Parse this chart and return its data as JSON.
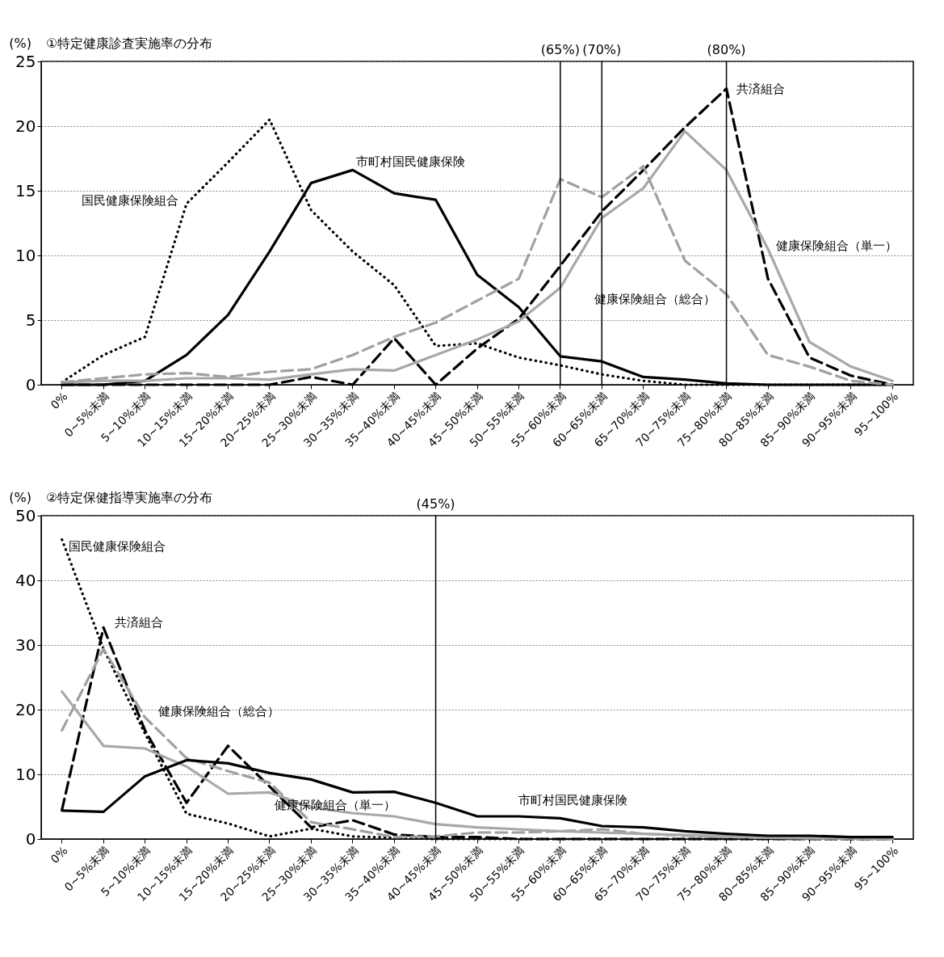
{
  "chart_data": [
    {
      "type": "line",
      "title": "①特定健康診査実施率の分布",
      "ylabel": "(%)",
      "categories": [
        "0%",
        "0~5%未満",
        "5~10%未満",
        "10~15%未満",
        "15~20%未満",
        "20~25%未満",
        "25~30%未満",
        "30~35%未満",
        "35~40%未満",
        "40~45%未満",
        "45~50%未満",
        "50~55%未満",
        "55~60%未満",
        "60~65%未満",
        "65~70%未満",
        "70~75%未満",
        "75~80%未満",
        "80~85%未満",
        "85~90%未満",
        "90~95%未満",
        "95~100%"
      ],
      "series": [
        {
          "name": "国民健康保険組合",
          "color": "#000000",
          "line_style": "dotted",
          "values": [
            0.2,
            2.3,
            3.7,
            14.0,
            17.2,
            20.5,
            13.5,
            10.3,
            7.7,
            3.0,
            3.2,
            2.1,
            1.5,
            0.8,
            0.3,
            0,
            0,
            0,
            0,
            0,
            0
          ]
        },
        {
          "name": "市町村国民健康保険",
          "color": "#000000",
          "line_style": "solid",
          "values": [
            0,
            0,
            0.3,
            2.3,
            5.4,
            10.3,
            15.6,
            16.6,
            14.8,
            14.3,
            8.5,
            6.0,
            2.2,
            1.8,
            0.6,
            0.4,
            0.1,
            0,
            0,
            0,
            0
          ]
        },
        {
          "name": "共済組合",
          "color": "#000000",
          "line_style": "dashed",
          "values": [
            0,
            0,
            0,
            0,
            0,
            0,
            0.6,
            0,
            3.6,
            0,
            2.8,
            5.1,
            9.2,
            13.4,
            16.6,
            19.9,
            22.9,
            8.2,
            2.1,
            0.7,
            0
          ]
        },
        {
          "name": "健康保険組合（単一）",
          "color": "#a8a8a8",
          "line_style": "solid",
          "values": [
            0.2,
            0.3,
            0.3,
            0.5,
            0.5,
            0.4,
            0.8,
            1.2,
            1.1,
            2.3,
            3.5,
            4.9,
            7.5,
            12.9,
            15.2,
            19.6,
            16.6,
            10.5,
            3.3,
            1.4,
            0.3
          ]
        },
        {
          "name": "健康保険組合（総合）",
          "color": "#a0a0a0",
          "line_style": "dashed",
          "values": [
            0.2,
            0.5,
            0.8,
            0.9,
            0.6,
            1.0,
            1.2,
            2.3,
            3.7,
            4.8,
            6.5,
            8.2,
            15.9,
            14.5,
            16.9,
            9.6,
            7.0,
            2.3,
            1.4,
            0.3,
            0
          ]
        }
      ],
      "ylim": [
        0,
        25
      ],
      "yticks": [
        0,
        5,
        10,
        15,
        20,
        25
      ],
      "grid": "y",
      "marker": "none",
      "ref_lines": [
        {
          "axis": "x",
          "value": "55~60%未満",
          "label": "(65%)"
        },
        {
          "axis": "x",
          "value": "60~65%未満",
          "label": "(70%)"
        },
        {
          "axis": "x",
          "value": "75~80%未満",
          "label": "(80%)"
        }
      ]
    },
    {
      "type": "line",
      "title": "②特定保健指導実施率の分布",
      "ylabel": "(%)",
      "categories": [
        "0%",
        "0~5%未満",
        "5~10%未満",
        "10~15%未満",
        "15~20%未満",
        "20~25%未満",
        "25~30%未満",
        "30~35%未満",
        "35~40%未満",
        "40~45%未満",
        "45~50%未満",
        "50~55%未満",
        "55~60%未満",
        "60~65%未満",
        "65~70%未満",
        "70~75%未満",
        "75~80%未満",
        "80~85%未満",
        "85~90%未満",
        "90~95%未満",
        "95~100%"
      ],
      "series": [
        {
          "name": "国民健康保険組合",
          "color": "#000000",
          "line_style": "dotted",
          "values": [
            46.3,
            29.4,
            16.3,
            3.9,
            2.4,
            0.4,
            1.6,
            0.4,
            0.2,
            0,
            0,
            0,
            0,
            0,
            0,
            0,
            0,
            0,
            0,
            0,
            0
          ]
        },
        {
          "name": "共済組合",
          "color": "#000000",
          "line_style": "dashed",
          "values": [
            4.5,
            32.7,
            16.8,
            5.6,
            14.4,
            8.1,
            1.8,
            2.9,
            0.7,
            0.3,
            0.3,
            0,
            0,
            0,
            0,
            0,
            0,
            0,
            0,
            0,
            0
          ]
        },
        {
          "name": "健康保険組合（総合）",
          "color": "#a0a0a0",
          "line_style": "dashed",
          "values": [
            16.8,
            29.4,
            18.8,
            12.5,
            10.5,
            8.7,
            2.6,
            1.5,
            0.3,
            0.4,
            1.0,
            1.0,
            1.2,
            1.5,
            0.8,
            0.5,
            0.3,
            0.2,
            0.2,
            0.1,
            0
          ]
        },
        {
          "name": "健康保険組合（単一）",
          "color": "#a8a8a8",
          "line_style": "solid",
          "values": [
            22.8,
            14.4,
            14.0,
            11.2,
            7.0,
            7.2,
            4.9,
            4.0,
            3.5,
            2.3,
            1.8,
            1.5,
            1.2,
            1.0,
            0.8,
            0.6,
            0.4,
            0.2,
            0.1,
            0.1,
            0
          ]
        },
        {
          "name": "市町村国民健康保険",
          "color": "#000000",
          "line_style": "solid",
          "values": [
            4.4,
            4.2,
            9.7,
            12.2,
            11.7,
            10.2,
            9.2,
            7.2,
            7.3,
            5.6,
            3.5,
            3.5,
            3.2,
            2.0,
            1.8,
            1.2,
            0.8,
            0.5,
            0.5,
            0.3,
            0.3
          ]
        }
      ],
      "ylim": [
        0,
        50
      ],
      "yticks": [
        0,
        10,
        20,
        30,
        40,
        50
      ],
      "grid": "y",
      "marker": "none",
      "ref_lines": [
        {
          "axis": "x",
          "value": "40~45%未満",
          "label": "(45%)"
        }
      ]
    }
  ]
}
